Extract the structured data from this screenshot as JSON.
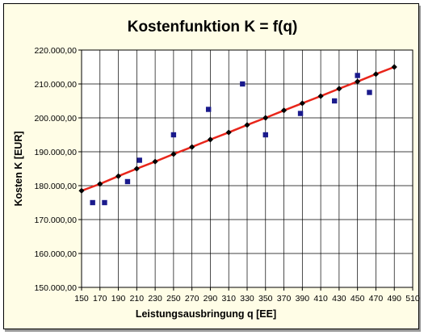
{
  "chart_data": {
    "type": "scatter",
    "title": "Kostenfunktion K = f(q)",
    "xlabel": "Leistungsausbringung q [EE]",
    "ylabel": "Kosten K [EUR]",
    "xlim": [
      150,
      510
    ],
    "ylim": [
      150000,
      220000
    ],
    "x_ticks": [
      "150",
      "170",
      "190",
      "210",
      "230",
      "250",
      "270",
      "290",
      "310",
      "330",
      "350",
      "370",
      "390",
      "410",
      "430",
      "450",
      "470",
      "490",
      "510"
    ],
    "y_ticks": [
      "150.000,00",
      "160.000,00",
      "170.000,00",
      "180.000,00",
      "190.000,00",
      "200.000,00",
      "210.000,00",
      "220.000,00"
    ],
    "grid": true,
    "legend": "none",
    "series": [
      {
        "kind": "observed",
        "marker": "square",
        "color": "#1a1a8c",
        "x": [
          162,
          175,
          200,
          213,
          250,
          288,
          325,
          350,
          388,
          425,
          450,
          463
        ],
        "y": [
          175000,
          175000,
          181200,
          187500,
          195000,
          202500,
          210000,
          195000,
          201300,
          205000,
          212500,
          207500
        ]
      },
      {
        "kind": "fitted",
        "marker": "diamond",
        "line_color": "#e8251a",
        "marker_color": "#000000",
        "x": [
          150,
          170,
          190,
          210,
          230,
          250,
          270,
          290,
          310,
          330,
          350,
          370,
          390,
          410,
          430,
          450,
          470,
          490
        ],
        "y": [
          178500,
          180500,
          182800,
          185000,
          187100,
          189300,
          191400,
          193600,
          195700,
          197900,
          200000,
          202200,
          204300,
          206400,
          208600,
          210700,
          212900,
          215000
        ]
      }
    ]
  }
}
